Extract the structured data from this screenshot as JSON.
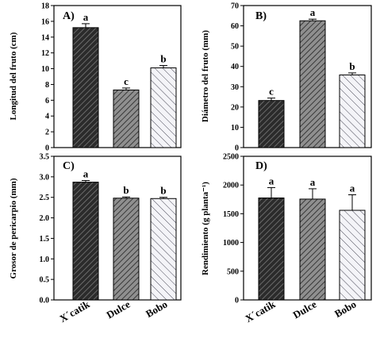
{
  "chart_data": [
    {
      "type": "bar",
      "panel_label": "A)",
      "ylabel": "Longitud del fruto (cm)",
      "ylim": [
        0,
        18
      ],
      "yticks": [
        "0",
        "2",
        "4",
        "6",
        "8",
        "10",
        "12",
        "14",
        "16",
        "18"
      ],
      "categories": [
        "X´catik",
        "Dulce",
        "Bobo"
      ],
      "values": [
        15.2,
        7.3,
        10.1
      ],
      "errors": [
        0.5,
        0.25,
        0.3
      ],
      "significance": [
        "a",
        "c",
        "b"
      ]
    },
    {
      "type": "bar",
      "panel_label": "B)",
      "ylabel": "Diámetro del fruto (mm)",
      "ylim": [
        0,
        70
      ],
      "yticks": [
        "0",
        "10",
        "20",
        "30",
        "40",
        "50",
        "60",
        "70"
      ],
      "categories": [
        "X´catik",
        "Dulce",
        "Bobo"
      ],
      "values": [
        23.2,
        62.5,
        35.8
      ],
      "errors": [
        1.2,
        0.8,
        1.0
      ],
      "significance": [
        "c",
        "a",
        "b"
      ]
    },
    {
      "type": "bar",
      "panel_label": "C)",
      "ylabel": "Grosor de pericarpio (mm)",
      "ylim": [
        0,
        3.5
      ],
      "yticks": [
        "0.0",
        "0.5",
        "1.0",
        "1.5",
        "2.0",
        "2.5",
        "3.0",
        "3.5"
      ],
      "categories": [
        "X´catik",
        "Dulce",
        "Bobo"
      ],
      "values": [
        2.87,
        2.48,
        2.47
      ],
      "errors": [
        0.04,
        0.03,
        0.03
      ],
      "significance": [
        "a",
        "b",
        "b"
      ]
    },
    {
      "type": "bar",
      "panel_label": "D)",
      "ylabel": "Rendimiento (g planta⁻¹)",
      "ylim": [
        0,
        2500
      ],
      "yticks": [
        "0",
        "500",
        "1000",
        "1500",
        "2000",
        "2500"
      ],
      "categories": [
        "X´catik",
        "Dulce",
        "Bobo"
      ],
      "values": [
        1775,
        1755,
        1560
      ],
      "errors": [
        180,
        180,
        270
      ],
      "significance": [
        "a",
        "a",
        "a"
      ]
    }
  ],
  "colors": {
    "bar1_fill": "#2b2b2b",
    "bar1_stripe": "#7a7a7a",
    "bar2_fill": "#8f8f8f",
    "bar2_stripe": "#2e2e2e",
    "bar3_fill": "#f4f4f8",
    "bar3_stripe": "#4a4a58"
  }
}
